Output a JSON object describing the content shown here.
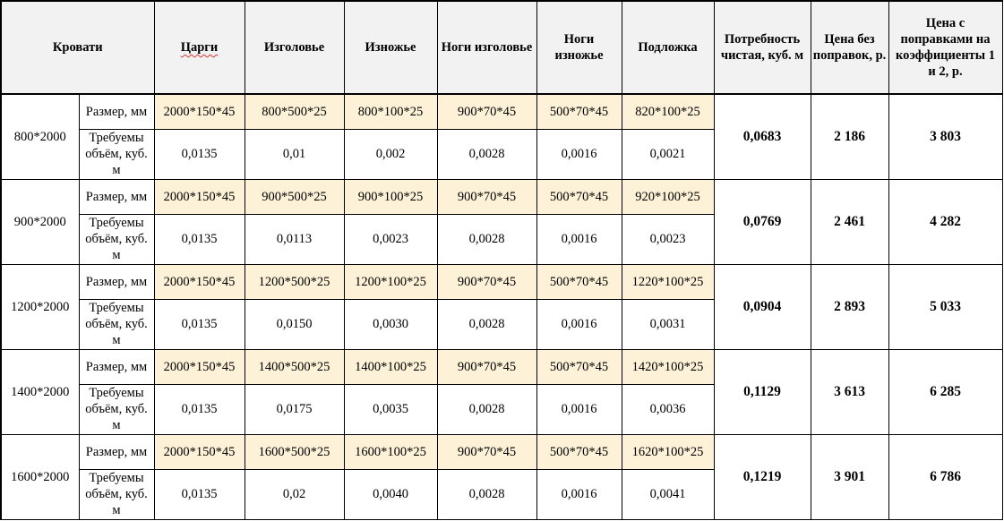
{
  "header": {
    "beds": "Кровати",
    "cols": [
      "Царги",
      "Изголовье",
      "Изножье",
      "Ноги изголовье",
      "Ноги изножье",
      "Подложка"
    ],
    "net_need": "Потребность чистая, куб. м",
    "price_plain": "Цена без поправок, р.",
    "price_coef": "Цена с поправками на коэффициенты 1 и 2, р."
  },
  "row_labels": {
    "size": "Размер, мм",
    "volume": "Требуемы объём, куб. м"
  },
  "rows": [
    {
      "bed": "800*2000",
      "dims": [
        "2000*150*45",
        "800*500*25",
        "800*100*25",
        "900*70*45",
        "500*70*45",
        "820*100*25"
      ],
      "vols": [
        "0,0135",
        "0,01",
        "0,002",
        "0,0028",
        "0,0016",
        "0,0021"
      ],
      "net": "0,0683",
      "price": "2 186",
      "price_coef": "3 803"
    },
    {
      "bed": "900*2000",
      "dims": [
        "2000*150*45",
        "900*500*25",
        "900*100*25",
        "900*70*45",
        "500*70*45",
        "920*100*25"
      ],
      "vols": [
        "0,0135",
        "0,0113",
        "0,0023",
        "0,0028",
        "0,0016",
        "0,0023"
      ],
      "net": "0,0769",
      "price": "2 461",
      "price_coef": "4 282"
    },
    {
      "bed": "1200*2000",
      "dims": [
        "2000*150*45",
        "1200*500*25",
        "1200*100*25",
        "900*70*45",
        "500*70*45",
        "1220*100*25"
      ],
      "vols": [
        "0,0135",
        "0,0150",
        "0,0030",
        "0,0028",
        "0,0016",
        "0,0031"
      ],
      "net": "0,0904",
      "price": "2 893",
      "price_coef": "5 033"
    },
    {
      "bed": "1400*2000",
      "dims": [
        "2000*150*45",
        "1400*500*25",
        "1400*100*25",
        "900*70*45",
        "500*70*45",
        "1420*100*25"
      ],
      "vols": [
        "0,0135",
        "0,0175",
        "0,0035",
        "0,0028",
        "0,0016",
        "0,0036"
      ],
      "net": "0,1129",
      "price": "3 613",
      "price_coef": "6 285"
    },
    {
      "bed": "1600*2000",
      "dims": [
        "2000*150*45",
        "1600*500*25",
        "1600*100*25",
        "900*70*45",
        "500*70*45",
        "1620*100*25"
      ],
      "vols": [
        "0,0135",
        "0,02",
        "0,0040",
        "0,0028",
        "0,0016",
        "0,0041"
      ],
      "net": "0,1219",
      "price": "3 901",
      "price_coef": "6 786"
    }
  ],
  "colors": {
    "dimension_fill": "#fdf2d7",
    "header_fill": "#f2f2f2",
    "spellcheck_underline": "#e03030"
  }
}
